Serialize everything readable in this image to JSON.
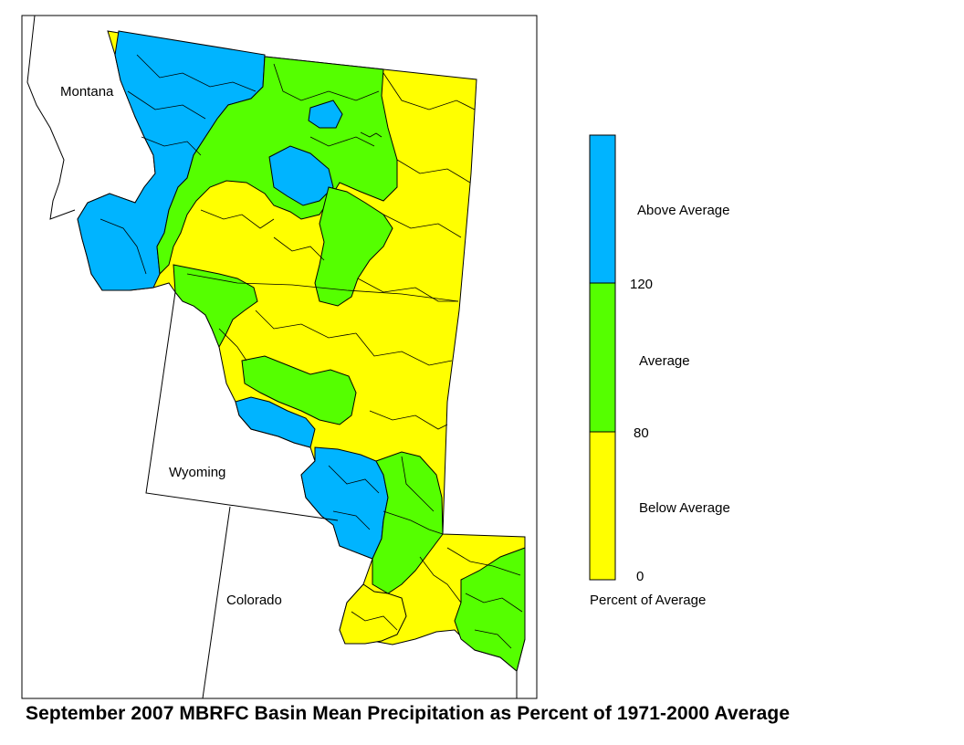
{
  "title": "September 2007 MBRFC Basin Mean Precipitation as Percent of 1971-2000 Average",
  "states": {
    "montana": "Montana",
    "wyoming": "Wyoming",
    "colorado": "Colorado"
  },
  "legend": {
    "caption": "Percent of Average",
    "categories": [
      {
        "label": "Above Average",
        "color": "#00b4ff",
        "range": "above 120"
      },
      {
        "label": "Average",
        "color": "#55ff00",
        "range": "80 to 120"
      },
      {
        "label": "Below Average",
        "color": "#ffff00",
        "range": "0 to 80"
      }
    ],
    "breaks": [
      "120",
      "80",
      "0"
    ]
  },
  "colors": {
    "above": "#00b4ff",
    "average": "#55ff00",
    "below": "#ffff00",
    "boundary": "#000000"
  }
}
